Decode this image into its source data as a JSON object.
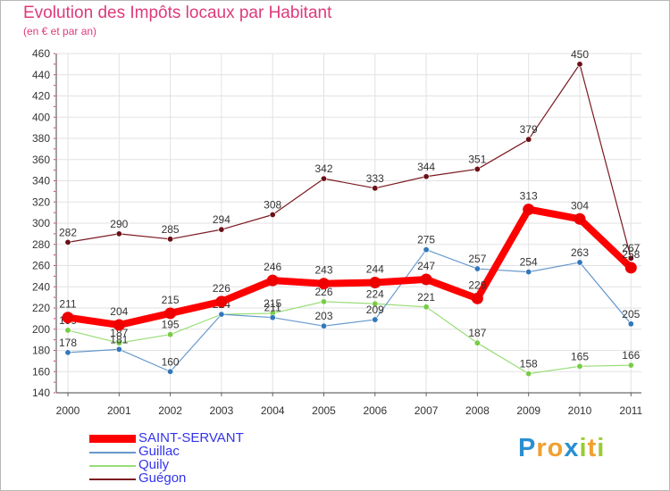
{
  "chart_data": {
    "type": "line",
    "title": "Evolution des Impôts locaux par Habitant",
    "subtitle": "(en € et par an)",
    "xlabel": "",
    "ylabel": "",
    "categories": [
      "2000",
      "2001",
      "2002",
      "2003",
      "2004",
      "2005",
      "2006",
      "2007",
      "2008",
      "2009",
      "2010",
      "2011"
    ],
    "ylim": [
      140,
      460
    ],
    "yticks": [
      140,
      160,
      180,
      200,
      220,
      240,
      260,
      280,
      300,
      320,
      340,
      360,
      380,
      400,
      420,
      440,
      460
    ],
    "grid": true,
    "legend_position": "bottom-left",
    "series": [
      {
        "name": "Guégon",
        "color": "#7a1a20",
        "marker": "#6b1015",
        "width": 1.2,
        "values": [
          282,
          290,
          285,
          294,
          308,
          342,
          333,
          344,
          351,
          379,
          450,
          267
        ]
      },
      {
        "name": "Quily",
        "color": "#99dd77",
        "marker": "#77cc44",
        "width": 1.2,
        "values": [
          199,
          187,
          195,
          214,
          215,
          226,
          224,
          221,
          187,
          158,
          165,
          166
        ]
      },
      {
        "name": "Guillac",
        "color": "#6699cc",
        "marker": "#3377bb",
        "width": 1.2,
        "values": [
          178,
          181,
          160,
          214,
          211,
          203,
          209,
          275,
          257,
          254,
          263,
          205
        ]
      },
      {
        "name": "SAINT-SERVANT",
        "color": "#ff0000",
        "marker": "#ee0000",
        "width": 8,
        "values": [
          211,
          204,
          215,
          226,
          246,
          243,
          244,
          247,
          229,
          313,
          304,
          258
        ]
      }
    ]
  },
  "legend": {
    "items": [
      {
        "label": "SAINT-SERVANT",
        "color": "#ff0000",
        "text_color": "#3333ee"
      },
      {
        "label": "Guillac",
        "color": "#6699cc",
        "text_color": "#3333ee"
      },
      {
        "label": "Quily",
        "color": "#99dd77",
        "text_color": "#3333ee"
      },
      {
        "label": "Guégon",
        "color": "#7a1a20",
        "text_color": "#3333ee"
      }
    ]
  },
  "logo": {
    "letters": [
      "P",
      "r",
      "o",
      "x",
      "i",
      "t",
      "i"
    ],
    "colors": [
      "#2a8fd0",
      "#f0a030",
      "#f0a030",
      "#2a8fd0",
      "#99cc33",
      "#f0a030",
      "#99cc33"
    ]
  }
}
